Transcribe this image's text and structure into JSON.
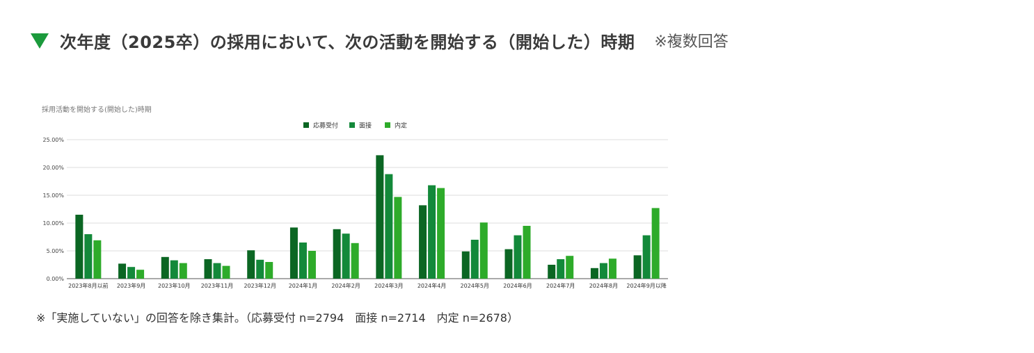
{
  "header": {
    "title": "次年度（2025卒）の採用において、次の活動を開始する（開始した）時期",
    "note": "※複数回答",
    "accent_color": "#1b9a3c"
  },
  "footnote": "※「実施していない」の回答を除き集計。（応募受付 n=2794　面接 n=2714　内定 n=2678）",
  "chart_data": {
    "type": "bar",
    "title": "採用活動を開始する(開始した)時期",
    "categories": [
      "2023年8月以前",
      "2023年9月",
      "2023年10月",
      "2023年11月",
      "2023年12月",
      "2024年1月",
      "2024年2月",
      "2024年3月",
      "2024年4月",
      "2024年5月",
      "2024年6月",
      "2024年7月",
      "2024年8月",
      "2024年9月以降"
    ],
    "series": [
      {
        "name": "応募受付",
        "color": "#0b6623",
        "values": [
          11.5,
          2.7,
          3.9,
          3.5,
          5.1,
          9.2,
          8.9,
          22.2,
          13.2,
          4.9,
          5.3,
          2.5,
          1.9,
          4.2
        ]
      },
      {
        "name": "面接",
        "color": "#13893a",
        "values": [
          8.0,
          2.1,
          3.3,
          2.8,
          3.4,
          6.5,
          8.1,
          18.8,
          16.8,
          7.0,
          7.8,
          3.5,
          2.8,
          7.8
        ]
      },
      {
        "name": "内定",
        "color": "#2eab2a",
        "values": [
          6.9,
          1.6,
          2.8,
          2.3,
          3.0,
          5.0,
          6.4,
          14.7,
          16.3,
          10.1,
          9.5,
          4.1,
          3.6,
          12.7
        ]
      }
    ],
    "yticks": [
      "0.00%",
      "5.00%",
      "10.00%",
      "15.00%",
      "20.00%",
      "25.00%"
    ],
    "ylim": [
      0,
      25
    ],
    "grid": true,
    "legend_position": "top-center"
  }
}
